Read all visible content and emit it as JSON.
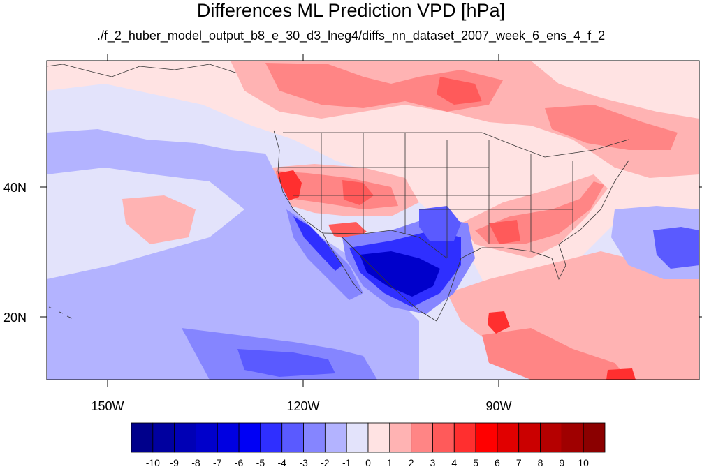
{
  "title": "Differences ML Prediction VPD [hPa]",
  "subtitle": "./f_2_huber_model_output_b8_e_30_d3_lneg4/diffs_nn_dataset_2007_week_6_ens_4_f_2",
  "axes": {
    "x_ticks": [
      "150W",
      "120W",
      "90W"
    ],
    "y_ticks": [
      "40N",
      "20N"
    ]
  },
  "colorbar": {
    "labels": [
      "-10",
      "-9",
      "-8",
      "-7",
      "-6",
      "-5",
      "-4",
      "-3",
      "-2",
      "-1",
      "0",
      "1",
      "2",
      "3",
      "4",
      "5",
      "6",
      "7",
      "8",
      "9",
      "10"
    ],
    "colors": [
      "#00008b",
      "#00009f",
      "#0000b5",
      "#0000cb",
      "#0000e1",
      "#0000f5",
      "#2f2fff",
      "#5a5aff",
      "#8585ff",
      "#b3b3ff",
      "#e3e3fb",
      "#ffe3e3",
      "#ffb3b3",
      "#ff8585",
      "#ff5a5a",
      "#ff2f2f",
      "#ff0000",
      "#e10000",
      "#cb0000",
      "#b50000",
      "#9f0000",
      "#8b0000"
    ]
  },
  "map": {
    "region": "Western Hemisphere / North America",
    "lon_range": [
      -160,
      -61
    ],
    "lat_range": [
      10,
      60
    ],
    "lon_ticks": [
      -150,
      -120,
      -90
    ],
    "lat_ticks": [
      40,
      20
    ],
    "colors": {
      "ocean_base": "#e3e3fb",
      "slight_pos": "#ffe3e3",
      "pos1": "#ffb3b3",
      "pos2": "#ff8585",
      "pos3": "#ff5a5a",
      "pos4": "#ff2f2f",
      "neg1": "#b3b3ff",
      "neg2": "#8585ff",
      "neg3": "#5a5aff",
      "neg4": "#2f2fff",
      "neg5": "#0000f5",
      "neg6": "#0000cb"
    }
  }
}
